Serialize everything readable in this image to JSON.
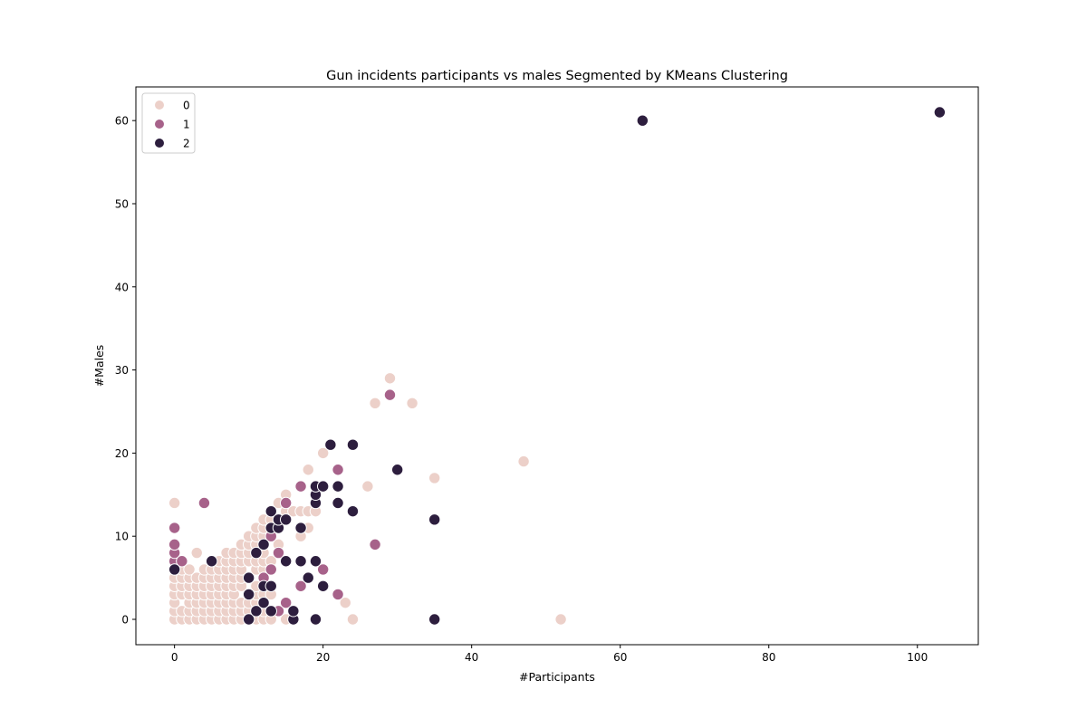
{
  "chart_data": {
    "type": "scatter",
    "title": "Gun incidents participants vs males Segmented by KMeans Clustering",
    "xlabel": "#Participants",
    "ylabel": "#Males",
    "xlim": [
      -5.2,
      108.2
    ],
    "ylim": [
      -3.05,
      64.05
    ],
    "xticks": [
      0,
      20,
      40,
      60,
      80,
      100
    ],
    "yticks": [
      0,
      10,
      20,
      30,
      40,
      50,
      60
    ],
    "grid": false,
    "legend_position": "top-left",
    "series": [
      {
        "name": "0",
        "color": "#ecd0c9",
        "points": [
          [
            0,
            0
          ],
          [
            0,
            1
          ],
          [
            0,
            2
          ],
          [
            0,
            3
          ],
          [
            0,
            4
          ],
          [
            0,
            5
          ],
          [
            0,
            14
          ],
          [
            1,
            0
          ],
          [
            1,
            1
          ],
          [
            1,
            3
          ],
          [
            1,
            4
          ],
          [
            1,
            5
          ],
          [
            1,
            6
          ],
          [
            2,
            0
          ],
          [
            2,
            1
          ],
          [
            2,
            2
          ],
          [
            2,
            3
          ],
          [
            2,
            4
          ],
          [
            2,
            5
          ],
          [
            2,
            6
          ],
          [
            3,
            0
          ],
          [
            3,
            1
          ],
          [
            3,
            2
          ],
          [
            3,
            3
          ],
          [
            3,
            4
          ],
          [
            3,
            5
          ],
          [
            3,
            8
          ],
          [
            4,
            0
          ],
          [
            4,
            1
          ],
          [
            4,
            2
          ],
          [
            4,
            3
          ],
          [
            4,
            4
          ],
          [
            4,
            5
          ],
          [
            4,
            6
          ],
          [
            5,
            0
          ],
          [
            5,
            1
          ],
          [
            5,
            2
          ],
          [
            5,
            3
          ],
          [
            5,
            4
          ],
          [
            5,
            5
          ],
          [
            5,
            6
          ],
          [
            6,
            0
          ],
          [
            6,
            1
          ],
          [
            6,
            2
          ],
          [
            6,
            3
          ],
          [
            6,
            4
          ],
          [
            6,
            5
          ],
          [
            6,
            6
          ],
          [
            6,
            7
          ],
          [
            7,
            0
          ],
          [
            7,
            1
          ],
          [
            7,
            2
          ],
          [
            7,
            3
          ],
          [
            7,
            4
          ],
          [
            7,
            5
          ],
          [
            7,
            6
          ],
          [
            7,
            7
          ],
          [
            7,
            8
          ],
          [
            8,
            0
          ],
          [
            8,
            1
          ],
          [
            8,
            2
          ],
          [
            8,
            3
          ],
          [
            8,
            4
          ],
          [
            8,
            5
          ],
          [
            8,
            6
          ],
          [
            8,
            7
          ],
          [
            8,
            8
          ],
          [
            9,
            0
          ],
          [
            9,
            1
          ],
          [
            9,
            2
          ],
          [
            9,
            4
          ],
          [
            9,
            5
          ],
          [
            9,
            6
          ],
          [
            9,
            7
          ],
          [
            9,
            8
          ],
          [
            9,
            9
          ],
          [
            10,
            1
          ],
          [
            10,
            2
          ],
          [
            10,
            7
          ],
          [
            10,
            8
          ],
          [
            10,
            9
          ],
          [
            10,
            10
          ],
          [
            11,
            0
          ],
          [
            11,
            2
          ],
          [
            11,
            3
          ],
          [
            11,
            4
          ],
          [
            11,
            6
          ],
          [
            11,
            7
          ],
          [
            11,
            8
          ],
          [
            11,
            9
          ],
          [
            11,
            10
          ],
          [
            11,
            11
          ],
          [
            12,
            0
          ],
          [
            12,
            1
          ],
          [
            12,
            2
          ],
          [
            12,
            3
          ],
          [
            12,
            5
          ],
          [
            12,
            6
          ],
          [
            12,
            7
          ],
          [
            12,
            8
          ],
          [
            12,
            10
          ],
          [
            12,
            11
          ],
          [
            12,
            12
          ],
          [
            13,
            0
          ],
          [
            13,
            3
          ],
          [
            13,
            7
          ],
          [
            13,
            12
          ],
          [
            14,
            9
          ],
          [
            14,
            14
          ],
          [
            15,
            0
          ],
          [
            15,
            13
          ],
          [
            15,
            15
          ],
          [
            16,
            13
          ],
          [
            17,
            10
          ],
          [
            17,
            13
          ],
          [
            18,
            11
          ],
          [
            18,
            13
          ],
          [
            18,
            18
          ],
          [
            19,
            13
          ],
          [
            20,
            20
          ],
          [
            23,
            2
          ],
          [
            24,
            0
          ],
          [
            26,
            16
          ],
          [
            27,
            26
          ],
          [
            29,
            29
          ],
          [
            32,
            26
          ],
          [
            35,
            17
          ],
          [
            47,
            19
          ],
          [
            52,
            0
          ]
        ]
      },
      {
        "name": "1",
        "color": "#a7628a",
        "points": [
          [
            0,
            6
          ],
          [
            0,
            7
          ],
          [
            0,
            8
          ],
          [
            0,
            9
          ],
          [
            0,
            11
          ],
          [
            1,
            7
          ],
          [
            4,
            14
          ],
          [
            10,
            5
          ],
          [
            12,
            5
          ],
          [
            13,
            6
          ],
          [
            13,
            10
          ],
          [
            14,
            1
          ],
          [
            14,
            8
          ],
          [
            15,
            2
          ],
          [
            15,
            14
          ],
          [
            17,
            4
          ],
          [
            17,
            16
          ],
          [
            20,
            6
          ],
          [
            22,
            3
          ],
          [
            22,
            18
          ],
          [
            27,
            9
          ],
          [
            29,
            27
          ]
        ]
      },
      {
        "name": "2",
        "color": "#2d1e3e",
        "points": [
          [
            0,
            6
          ],
          [
            5,
            7
          ],
          [
            10,
            0
          ],
          [
            10,
            3
          ],
          [
            10,
            5
          ],
          [
            11,
            1
          ],
          [
            11,
            8
          ],
          [
            12,
            2
          ],
          [
            12,
            4
          ],
          [
            12,
            9
          ],
          [
            13,
            1
          ],
          [
            13,
            4
          ],
          [
            13,
            11
          ],
          [
            13,
            13
          ],
          [
            14,
            11
          ],
          [
            14,
            12
          ],
          [
            15,
            7
          ],
          [
            15,
            12
          ],
          [
            16,
            0
          ],
          [
            16,
            1
          ],
          [
            17,
            7
          ],
          [
            17,
            11
          ],
          [
            18,
            5
          ],
          [
            19,
            0
          ],
          [
            19,
            7
          ],
          [
            19,
            14
          ],
          [
            19,
            15
          ],
          [
            19,
            16
          ],
          [
            20,
            4
          ],
          [
            20,
            16
          ],
          [
            21,
            21
          ],
          [
            22,
            14
          ],
          [
            22,
            16
          ],
          [
            24,
            13
          ],
          [
            24,
            21
          ],
          [
            30,
            18
          ],
          [
            35,
            0
          ],
          [
            35,
            12
          ],
          [
            63,
            60
          ],
          [
            103,
            61
          ]
        ]
      }
    ]
  }
}
